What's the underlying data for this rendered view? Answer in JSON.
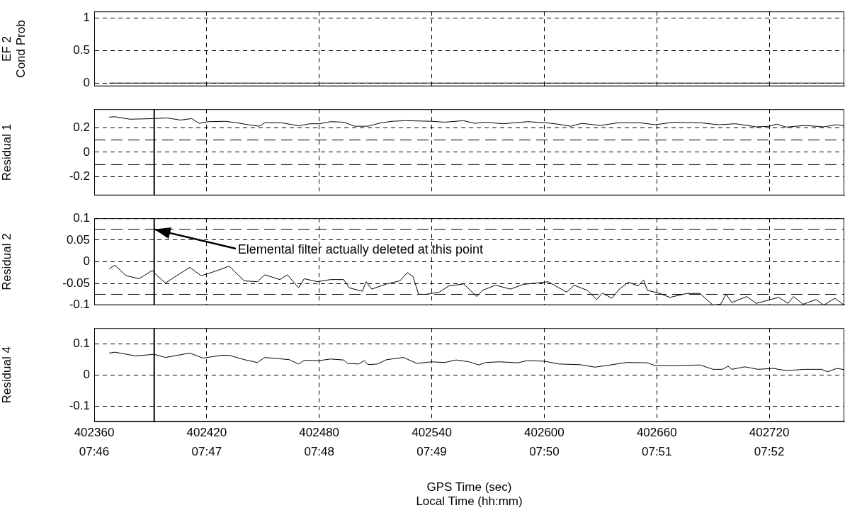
{
  "chart_data": [
    {
      "type": "line",
      "ylabel": "EF 2\nCond Prob",
      "xlim": [
        402360,
        402760
      ],
      "ylim": [
        -0.05,
        1.1
      ],
      "yticks": [
        0,
        0.5,
        1
      ],
      "xticks": [
        402360,
        402420,
        402480,
        402540,
        402600,
        402660,
        402720
      ],
      "grid": true,
      "tick_labels": "y",
      "series": [
        {
          "color": "#000000",
          "x": [
            402368,
            402760
          ],
          "values": [
            0,
            0
          ]
        }
      ]
    },
    {
      "type": "line",
      "ylabel": "Residual 1",
      "xlim": [
        402360,
        402760
      ],
      "ylim": [
        -0.35,
        0.35
      ],
      "yticks": [
        -0.2,
        0,
        0.2
      ],
      "xticks": [
        402360,
        402420,
        402480,
        402540,
        402600,
        402660,
        402720
      ],
      "grid": true,
      "tick_labels": "y",
      "ref_lines": [
        {
          "axis": "y",
          "value": 0.1,
          "color": "#000000",
          "line_style": "dashed"
        },
        {
          "axis": "y",
          "value": -0.1,
          "color": "#000000",
          "line_style": "dashed"
        },
        {
          "axis": "x",
          "value": 402392,
          "color": "#000000",
          "line_style": "solid"
        }
      ],
      "series": [
        {
          "color": "#000000",
          "x": [
            402368,
            402371,
            402379,
            402387,
            402391,
            402399,
            402406,
            402412,
            402416,
            402421,
            402430,
            402436,
            402443,
            402448,
            402451,
            402460,
            402469,
            402475,
            402480,
            402486,
            402493,
            402499,
            402506,
            402513,
            402519,
            402526,
            402540,
            402547,
            402557,
            402563,
            402568,
            402578,
            402591,
            402601,
            402607,
            402614,
            402620,
            402630,
            402639,
            402651,
            402659,
            402669,
            402683,
            402693,
            402702,
            402713,
            402720,
            402724,
            402729,
            402739,
            402749,
            402756,
            402760
          ],
          "values": [
            0.286,
            0.289,
            0.269,
            0.272,
            0.274,
            0.279,
            0.262,
            0.274,
            0.235,
            0.249,
            0.252,
            0.24,
            0.222,
            0.212,
            0.24,
            0.24,
            0.215,
            0.232,
            0.232,
            0.249,
            0.245,
            0.212,
            0.212,
            0.24,
            0.252,
            0.257,
            0.252,
            0.245,
            0.257,
            0.235,
            0.245,
            0.232,
            0.249,
            0.24,
            0.229,
            0.212,
            0.235,
            0.218,
            0.239,
            0.24,
            0.224,
            0.244,
            0.24,
            0.224,
            0.232,
            0.207,
            0.212,
            0.229,
            0.205,
            0.218,
            0.207,
            0.224,
            0.215
          ]
        }
      ]
    },
    {
      "type": "line",
      "ylabel": "Residual 2",
      "xlim": [
        402360,
        402760
      ],
      "ylim": [
        -0.1,
        0.1
      ],
      "yticks": [
        -0.1,
        -0.05,
        0,
        0.05,
        0.1
      ],
      "xticks": [
        402360,
        402420,
        402480,
        402540,
        402600,
        402660,
        402720
      ],
      "grid": true,
      "tick_labels": "y",
      "ref_lines": [
        {
          "axis": "y",
          "value": 0.075,
          "color": "#000000",
          "line_style": "dashed"
        },
        {
          "axis": "y",
          "value": -0.075,
          "color": "#000000",
          "line_style": "dashed"
        },
        {
          "axis": "x",
          "value": 402392,
          "color": "#000000",
          "line_style": "solid"
        }
      ],
      "annotations": [
        {
          "text": "Elemental filter actually deleted at this point",
          "x": 402392,
          "y": 0.075
        }
      ],
      "series": [
        {
          "color": "#000000",
          "x": [
            402368,
            402371,
            402377,
            402384,
            402391,
            402393,
            402398,
            402404,
            402411,
            402417,
            402421,
            402427,
            402432,
            402440,
            402447,
            402451,
            402459,
            402463,
            402469,
            402472,
            402479,
            402486,
            402493,
            402496,
            402503,
            402505,
            402508,
            402516,
            402523,
            402527,
            402530,
            402533,
            402537,
            402544,
            402549,
            402557,
            402564,
            402567,
            402574,
            402582,
            402589,
            402596,
            402602,
            402612,
            402616,
            402623,
            402628,
            402631,
            402636,
            402640,
            402645,
            402650,
            402653,
            402655,
            402661,
            402667,
            402676,
            402683,
            402690,
            402694,
            402697,
            402700,
            402708,
            402713,
            402725,
            402730,
            402733,
            402738,
            402745,
            402749,
            402755,
            402760
          ],
          "values": [
            -0.016,
            -0.008,
            -0.032,
            -0.039,
            -0.02,
            -0.03,
            -0.049,
            -0.032,
            -0.013,
            -0.032,
            -0.027,
            -0.018,
            -0.01,
            -0.044,
            -0.046,
            -0.03,
            -0.041,
            -0.03,
            -0.06,
            -0.039,
            -0.046,
            -0.041,
            -0.041,
            -0.06,
            -0.068,
            -0.046,
            -0.063,
            -0.051,
            -0.044,
            -0.025,
            -0.034,
            -0.075,
            -0.075,
            -0.07,
            -0.056,
            -0.051,
            -0.08,
            -0.066,
            -0.054,
            -0.063,
            -0.052,
            -0.049,
            -0.046,
            -0.07,
            -0.054,
            -0.066,
            -0.087,
            -0.072,
            -0.084,
            -0.063,
            -0.047,
            -0.056,
            -0.042,
            -0.066,
            -0.072,
            -0.082,
            -0.073,
            -0.073,
            -0.1,
            -0.098,
            -0.075,
            -0.094,
            -0.08,
            -0.096,
            -0.082,
            -0.096,
            -0.08,
            -0.098,
            -0.087,
            -0.1,
            -0.084,
            -0.1
          ]
        }
      ]
    },
    {
      "type": "line",
      "ylabel": "Residual 4",
      "xlabel": "GPS Time (sec)",
      "x2label": "Local Time (hh:mm)",
      "xlim": [
        402360,
        402760
      ],
      "ylim": [
        -0.15,
        0.15
      ],
      "yticks": [
        -0.1,
        0,
        0.1
      ],
      "xticks": [
        402360,
        402420,
        402480,
        402540,
        402600,
        402660,
        402720
      ],
      "x2lim": [
        7.766667,
        7.877778
      ],
      "x2ticks": [
        {
          "value": 7.766667,
          "label": "07:46"
        },
        {
          "value": 7.783333,
          "label": "07:47"
        },
        {
          "value": 7.8,
          "label": "07:48"
        },
        {
          "value": 7.816667,
          "label": "07:49"
        },
        {
          "value": 7.833333,
          "label": "07:50"
        },
        {
          "value": 7.85,
          "label": "07:51"
        },
        {
          "value": 7.866667,
          "label": "07:52"
        }
      ],
      "grid": true,
      "ref_lines": [
        {
          "axis": "x",
          "value": 402392,
          "color": "#000000",
          "line_style": "solid"
        }
      ],
      "series": [
        {
          "color": "#000000",
          "x": [
            402368,
            402371,
            402382,
            402392,
            402398,
            402411,
            402418,
            402428,
            402432,
            402440,
            402447,
            402451,
            402464,
            402469,
            402472,
            402480,
            402486,
            402493,
            402495,
            402501,
            402504,
            402506,
            402511,
            402516,
            402525,
            402532,
            402540,
            402547,
            402553,
            402560,
            402565,
            402569,
            402576,
            402586,
            402591,
            402600,
            402608,
            402619,
            402627,
            402633,
            402644,
            402655,
            402659,
            402670,
            402683,
            402690,
            402695,
            402698,
            402700,
            402707,
            402714,
            402722,
            402729,
            402739,
            402748,
            402751,
            402756,
            402760
          ],
          "values": [
            0.07,
            0.073,
            0.061,
            0.066,
            0.056,
            0.07,
            0.054,
            0.063,
            0.063,
            0.049,
            0.04,
            0.056,
            0.049,
            0.035,
            0.047,
            0.046,
            0.051,
            0.048,
            0.037,
            0.035,
            0.046,
            0.033,
            0.035,
            0.049,
            0.056,
            0.037,
            0.042,
            0.04,
            0.048,
            0.042,
            0.032,
            0.04,
            0.042,
            0.039,
            0.046,
            0.044,
            0.035,
            0.033,
            0.025,
            0.03,
            0.04,
            0.039,
            0.03,
            0.03,
            0.032,
            0.018,
            0.018,
            0.028,
            0.018,
            0.026,
            0.018,
            0.021,
            0.014,
            0.018,
            0.018,
            0.01,
            0.021,
            0.017
          ]
        }
      ]
    }
  ]
}
